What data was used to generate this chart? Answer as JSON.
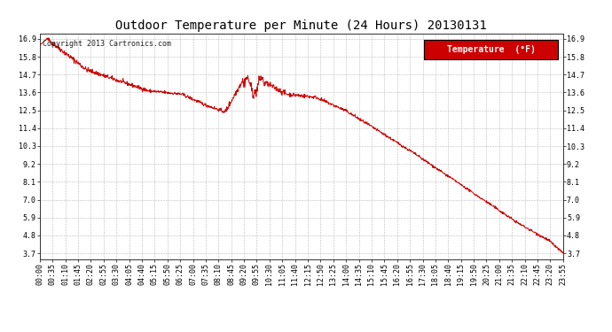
{
  "title": "Outdoor Temperature per Minute (24 Hours) 20130131",
  "copyright_text": "Copyright 2013 Cartronics.com",
  "legend_label": "Temperature  (°F)",
  "line_color": "#cc0000",
  "background_color": "#ffffff",
  "grid_color": "#bbbbbb",
  "y_ticks": [
    3.7,
    4.8,
    5.9,
    7.0,
    8.1,
    9.2,
    10.3,
    11.4,
    12.5,
    13.6,
    14.7,
    15.8,
    16.9
  ],
  "ylim": [
    3.35,
    17.25
  ],
  "x_tick_labels": [
    "00:00",
    "00:35",
    "01:10",
    "01:45",
    "02:20",
    "02:55",
    "03:30",
    "04:05",
    "04:40",
    "05:15",
    "05:50",
    "06:25",
    "07:00",
    "07:35",
    "08:10",
    "08:45",
    "09:20",
    "09:55",
    "10:30",
    "11:05",
    "11:40",
    "12:15",
    "12:50",
    "13:25",
    "14:00",
    "14:35",
    "15:10",
    "15:45",
    "16:20",
    "16:55",
    "17:30",
    "18:05",
    "18:40",
    "19:15",
    "19:50",
    "20:25",
    "21:00",
    "21:35",
    "22:10",
    "22:45",
    "23:20",
    "23:55"
  ],
  "num_minutes": 1440,
  "legend_bg": "#cc0000",
  "legend_text_color": "#ffffff",
  "title_fontsize": 10,
  "tick_fontsize": 6,
  "copyright_fontsize": 6
}
